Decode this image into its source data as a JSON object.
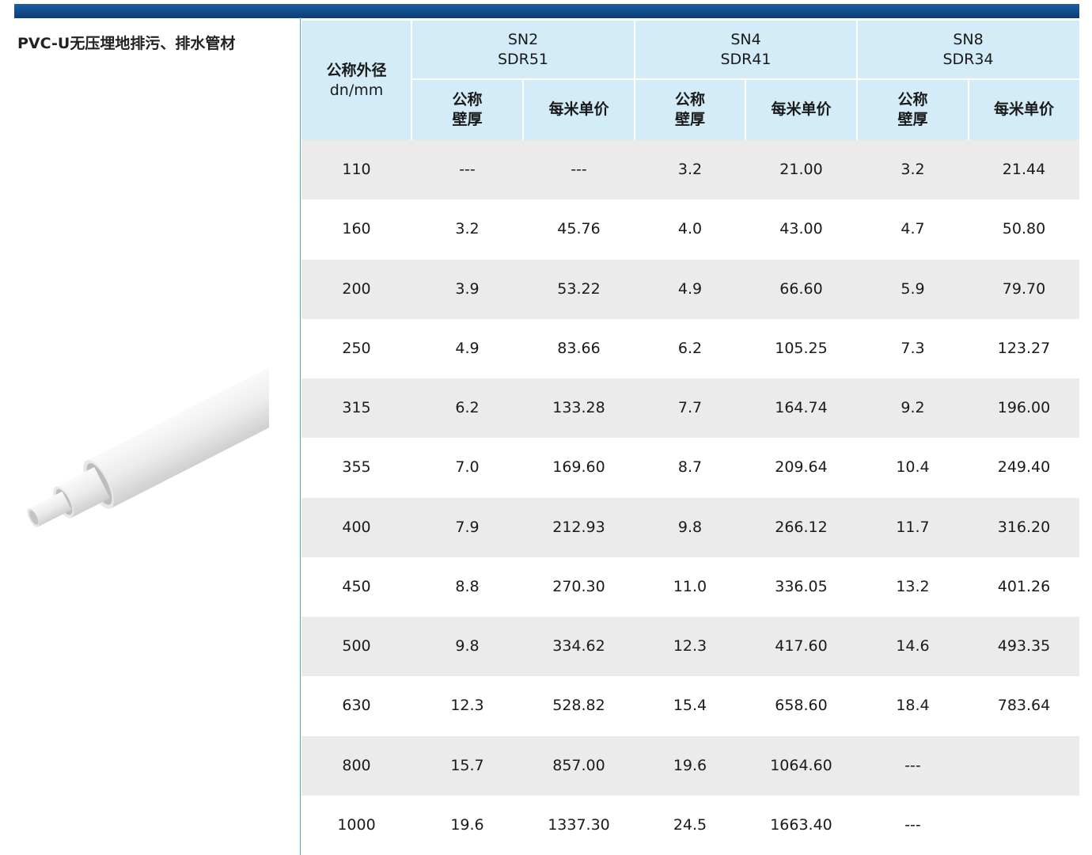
{
  "header": {
    "title": "PVC-U无压埋地排污、排水管材"
  },
  "table": {
    "diameter_header": [
      "公称外径",
      "dn/mm"
    ],
    "groups": [
      {
        "lines": [
          "SN2",
          "SDR51"
        ],
        "columns": [
          [
            "公称",
            "壁厚"
          ],
          [
            "每米单价"
          ]
        ]
      },
      {
        "lines": [
          "SN4",
          "SDR41"
        ],
        "columns": [
          [
            "公称",
            "壁厚"
          ],
          [
            "每米单价"
          ]
        ]
      },
      {
        "lines": [
          "SN8",
          "SDR34"
        ],
        "columns": [
          [
            "公称",
            "壁厚"
          ],
          [
            "每米单价"
          ]
        ]
      }
    ],
    "rows": [
      [
        "110",
        "---",
        "---",
        "3.2",
        "21.00",
        "3.2",
        "21.44"
      ],
      [
        "160",
        "3.2",
        "45.76",
        "4.0",
        "43.00",
        "4.7",
        "50.80"
      ],
      [
        "200",
        "3.9",
        "53.22",
        "4.9",
        "66.60",
        "5.9",
        "79.70"
      ],
      [
        "250",
        "4.9",
        "83.66",
        "6.2",
        "105.25",
        "7.3",
        "123.27"
      ],
      [
        "315",
        "6.2",
        "133.28",
        "7.7",
        "164.74",
        "9.2",
        "196.00"
      ],
      [
        "355",
        "7.0",
        "169.60",
        "8.7",
        "209.64",
        "10.4",
        "249.40"
      ],
      [
        "400",
        "7.9",
        "212.93",
        "9.8",
        "266.12",
        "11.7",
        "316.20"
      ],
      [
        "450",
        "8.8",
        "270.30",
        "11.0",
        "336.05",
        "13.2",
        "401.26"
      ],
      [
        "500",
        "9.8",
        "334.62",
        "12.3",
        "417.60",
        "14.6",
        "493.35"
      ],
      [
        "630",
        "12.3",
        "528.82",
        "15.4",
        "658.60",
        "18.4",
        "783.64"
      ],
      [
        "800",
        "15.7",
        "857.00",
        "19.6",
        "1064.60",
        "---"
      ],
      [
        "1000",
        "19.6",
        "1337.30",
        "24.5",
        "1663.40",
        "---"
      ]
    ]
  }
}
